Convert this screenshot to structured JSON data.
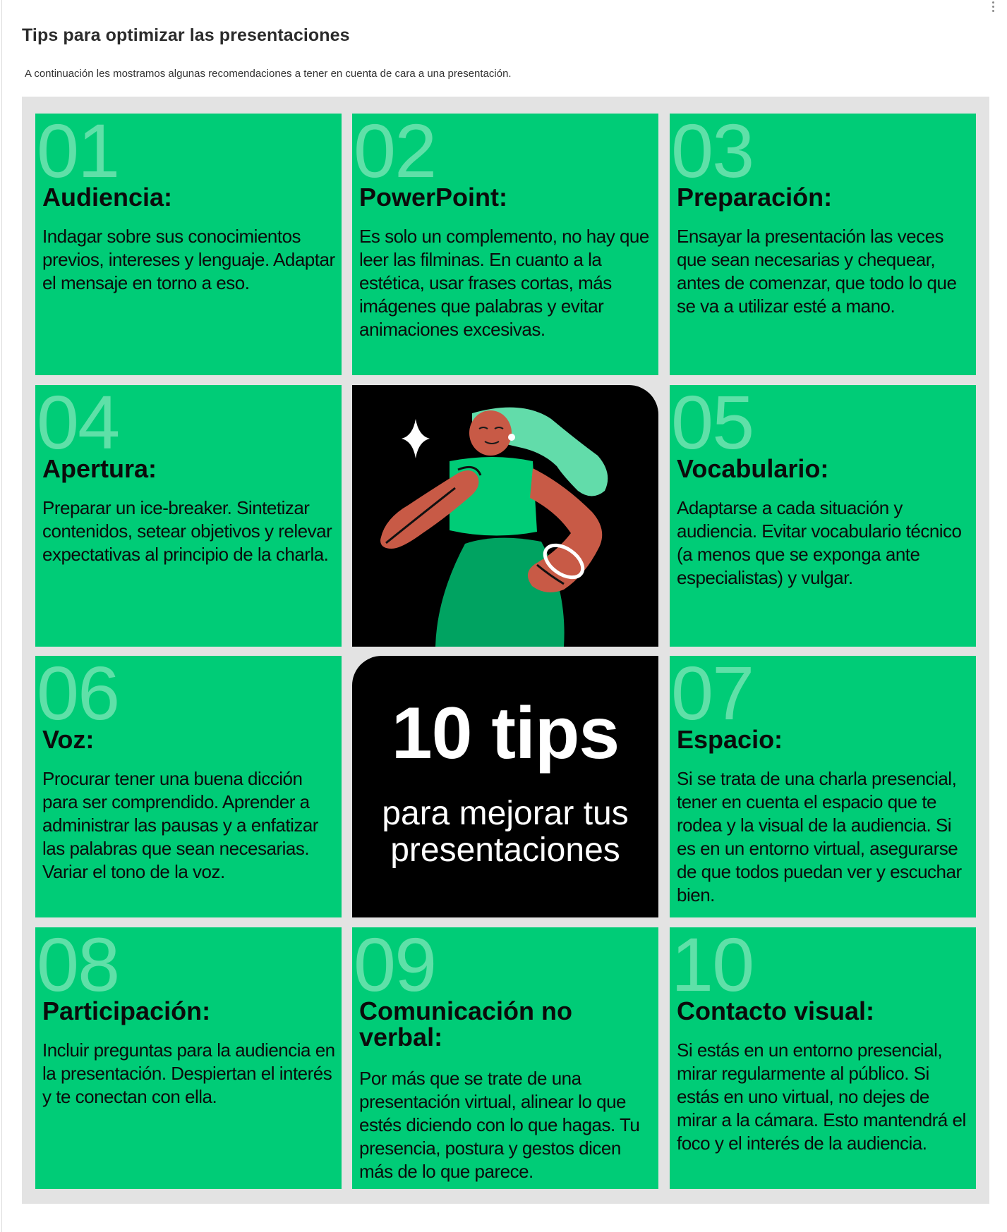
{
  "page": {
    "title": "Tips para optimizar las presentaciones",
    "intro": "A continuación les mostramos algunas recomendaciones a tener en cuenta de cara a una presentación."
  },
  "tips": [
    {
      "number": "01",
      "title": "Audiencia:",
      "text": "Indagar sobre sus conocimientos previos, intereses y lenguaje. Adaptar el mensaje en torno a eso."
    },
    {
      "number": "02",
      "title": "PowerPoint:",
      "text": "Es solo un complemento, no hay que leer las filminas. En cuanto a la estética, usar frases cortas, más imágenes que palabras y evitar animaciones excesivas."
    },
    {
      "number": "03",
      "title": "Preparación:",
      "text": "Ensayar la presentación las veces que sean necesarias y chequear, antes de comenzar, que todo lo que se va a utilizar esté a mano."
    },
    {
      "number": "04",
      "title": "Apertura:",
      "text": "Preparar un ice-breaker. Sintetizar contenidos, setear objetivos y relevar expectativas al principio de la charla."
    },
    {
      "number": "05",
      "title": "Vocabulario:",
      "text": "Adaptarse a cada situación y audiencia. Evitar vocabulario técnico (a menos que se exponga ante especialistas) y vulgar."
    },
    {
      "number": "06",
      "title": "Voz:",
      "text": "Procurar tener una buena dicción para ser comprendido. Aprender a administrar las pausas y a enfatizar las palabras que sean necesarias. Variar el tono de la voz."
    },
    {
      "number": "07",
      "title": "Espacio:",
      "text": "Si se trata de una charla presencial, tener en cuenta el espacio que te rodea y la visual de la audiencia. Si es en un entorno virtual, asegurarse de que todos puedan ver y escuchar bien."
    },
    {
      "number": "08",
      "title": "Participación:",
      "text": "Incluir preguntas para la audiencia en la presentación. Despiertan el interés y te conectan con ella."
    },
    {
      "number": "09",
      "title": "Comunicación no verbal:",
      "text": "Por más que se trate de una presentación virtual, alinear lo que estés diciendo con lo que hagas. Tu presencia, postura y gestos dicen más de lo que parece."
    },
    {
      "number": "10",
      "title": "Contacto visual:",
      "text": "Si estás en un entorno presencial, mirar regularmente al público. Si estás en uno virtual, no dejes de mirar a la cámara. Esto mantendrá el foco y el interés de la audiencia."
    }
  ],
  "center": {
    "headline": "10 tips",
    "subline_1": "para mejorar tus",
    "subline_2": "presentaciones"
  },
  "colors": {
    "card_green": "#00cc77",
    "number_green": "#5fe0a8",
    "dark": "#000000",
    "frame_gray": "#e3e3e3"
  },
  "icons": {
    "menu": "more-vertical-icon",
    "illustration": "woman-presenter-illustration",
    "sparkle": "sparkle-icon"
  }
}
